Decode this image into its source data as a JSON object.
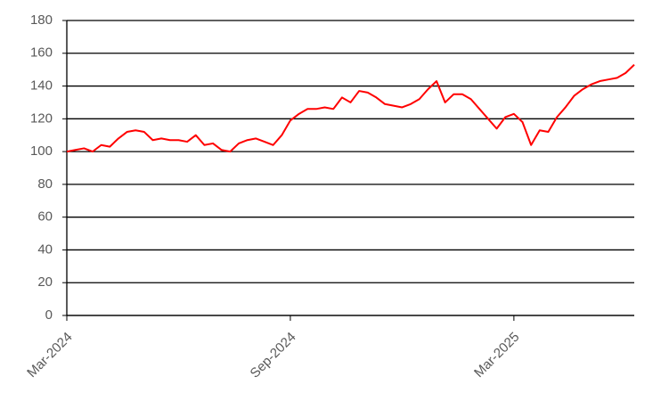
{
  "chart_data": {
    "type": "line",
    "categories": [
      "Mar-2024",
      null,
      null,
      null,
      null,
      null,
      null,
      null,
      null,
      null,
      null,
      null,
      null,
      null,
      null,
      null,
      null,
      null,
      null,
      null,
      null,
      null,
      null,
      null,
      null,
      null,
      "Sep-2024",
      null,
      null,
      null,
      null,
      null,
      null,
      null,
      null,
      null,
      null,
      null,
      null,
      null,
      null,
      null,
      null,
      null,
      null,
      null,
      null,
      null,
      null,
      null,
      null,
      null,
      "Mar-2025",
      null,
      null,
      null,
      null,
      null,
      null,
      null,
      null,
      null,
      null,
      null,
      null,
      null,
      null
    ],
    "series": [
      {
        "color": "#ff0000",
        "values": [
          100,
          101,
          102,
          100,
          104,
          103,
          108,
          112,
          113,
          112,
          107,
          108,
          107,
          107,
          106,
          110,
          104,
          105,
          101,
          100,
          105,
          107,
          108,
          106,
          104,
          110,
          119,
          123,
          126,
          126,
          127,
          126,
          133,
          130,
          137,
          136,
          133,
          129,
          128,
          127,
          129,
          132,
          138,
          143,
          130,
          135,
          135,
          132,
          126,
          120,
          114,
          121,
          123,
          118,
          104,
          113,
          112,
          121,
          127,
          134,
          138,
          141,
          143,
          144,
          145,
          148,
          153
        ]
      }
    ],
    "ylim": [
      0,
      180
    ],
    "yticks": [
      0,
      20,
      40,
      60,
      80,
      100,
      120,
      140,
      160,
      180
    ],
    "grid": true
  }
}
